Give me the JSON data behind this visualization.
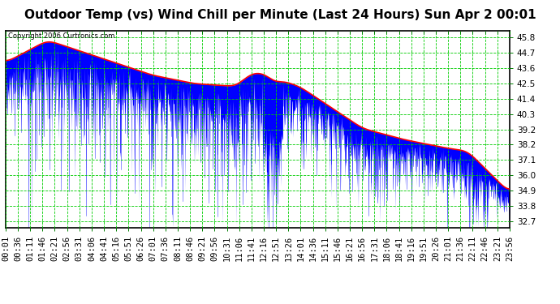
{
  "title": "Outdoor Temp (vs) Wind Chill per Minute (Last 24 Hours) Sun Apr 2 00:01",
  "copyright": "Copyright 2006 Curtronics.com",
  "y_ticks": [
    32.7,
    33.8,
    34.9,
    36.0,
    37.1,
    38.2,
    39.2,
    40.3,
    41.4,
    42.5,
    43.6,
    44.7,
    45.8
  ],
  "y_min": 32.2,
  "y_max": 46.3,
  "x_labels": [
    "00:01",
    "00:36",
    "01:11",
    "01:46",
    "02:21",
    "02:56",
    "03:31",
    "04:06",
    "04:41",
    "05:16",
    "05:51",
    "06:26",
    "07:01",
    "07:36",
    "08:11",
    "08:46",
    "09:21",
    "09:56",
    "10:31",
    "11:06",
    "11:41",
    "12:16",
    "12:51",
    "13:26",
    "14:01",
    "14:36",
    "15:11",
    "15:46",
    "16:21",
    "16:56",
    "17:31",
    "18:06",
    "18:41",
    "19:16",
    "19:51",
    "20:26",
    "21:01",
    "21:36",
    "22:11",
    "22:46",
    "23:21",
    "23:56"
  ],
  "background_color": "#ffffff",
  "plot_bg_color": "#ffffff",
  "grid_color": "#00cc00",
  "blue_color": "#0000ff",
  "red_color": "#ff0000",
  "title_fontsize": 11,
  "tick_fontsize": 7.5,
  "figsize": [
    6.9,
    3.75
  ],
  "dpi": 100
}
